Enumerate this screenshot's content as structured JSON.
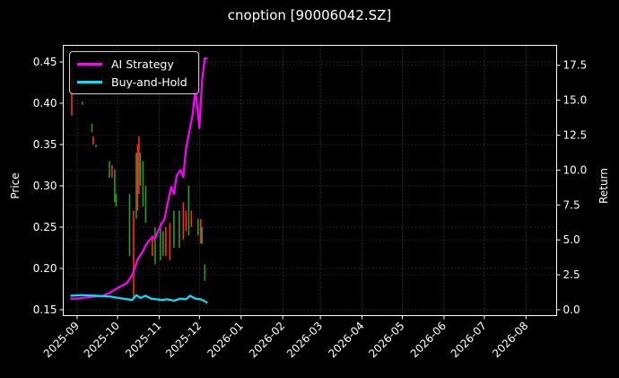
{
  "chart_data": {
    "type": "line",
    "title": "cnoption [90006042.SZ]",
    "xlabel": "",
    "ylabel": "Price",
    "ylabel_right": "Return",
    "ylim": [
      0.143,
      0.467
    ],
    "ylim_right": [
      -0.4,
      18.6
    ],
    "yticks": [
      "0.15",
      "0.20",
      "0.25",
      "0.30",
      "0.35",
      "0.40",
      "0.45"
    ],
    "yticks_right": [
      "0.0",
      "2.5",
      "5.0",
      "7.5",
      "10.0",
      "12.5",
      "15.0",
      "17.5"
    ],
    "xticks": [
      "2025-09",
      "2025-10",
      "2025-11",
      "2025-12",
      "2026-01",
      "2026-02",
      "2026-03",
      "2026-04",
      "2026-05",
      "2026-06",
      "2026-07",
      "2026-08"
    ],
    "grid": true,
    "legend_position": "upper left",
    "legend": [
      "AI Strategy",
      "Buy-and-Hold"
    ],
    "colors": {
      "ai_strategy": "#ff00ff",
      "buy_and_hold": "#00e5ff",
      "candle_up": "#1f9e1f",
      "candle_down": "#ff2a1a",
      "background": "#000000",
      "grid": "#444444"
    },
    "series": [
      {
        "name": "AI Strategy",
        "axis": "right",
        "x": [
          "2025-08-27",
          "2025-09-01",
          "2025-09-05",
          "2025-09-10",
          "2025-09-15",
          "2025-09-20",
          "2025-09-25",
          "2025-09-30",
          "2025-10-08",
          "2025-10-12",
          "2025-10-14",
          "2025-10-16",
          "2025-10-18",
          "2025-10-20",
          "2025-10-22",
          "2025-10-24",
          "2025-10-27",
          "2025-10-29",
          "2025-10-31",
          "2025-11-03",
          "2025-11-05",
          "2025-11-07",
          "2025-11-10",
          "2025-11-12",
          "2025-11-14",
          "2025-11-17",
          "2025-11-19",
          "2025-11-21",
          "2025-11-24",
          "2025-11-26",
          "2025-11-28",
          "2025-12-01",
          "2025-12-03",
          "2025-12-05",
          "2025-12-07"
        ],
        "values": [
          0.8,
          0.8,
          0.85,
          0.9,
          0.95,
          1.0,
          1.2,
          1.5,
          1.9,
          2.5,
          3.0,
          3.6,
          3.9,
          4.2,
          4.6,
          4.9,
          5.2,
          5.1,
          5.6,
          6.2,
          6.5,
          7.5,
          8.8,
          8.3,
          9.6,
          10.0,
          9.5,
          11.5,
          13.0,
          14.0,
          15.8,
          13.0,
          16.5,
          18.0,
          18.0
        ]
      },
      {
        "name": "Buy-and-Hold",
        "axis": "right",
        "x": [
          "2025-08-27",
          "2025-09-05",
          "2025-09-15",
          "2025-09-25",
          "2025-10-05",
          "2025-10-12",
          "2025-10-15",
          "2025-10-18",
          "2025-10-22",
          "2025-10-26",
          "2025-10-30",
          "2025-11-03",
          "2025-11-07",
          "2025-11-12",
          "2025-11-17",
          "2025-11-21",
          "2025-11-24",
          "2025-11-28",
          "2025-12-02",
          "2025-12-07"
        ],
        "values": [
          1.0,
          1.05,
          1.0,
          0.95,
          0.8,
          0.7,
          1.05,
          0.85,
          1.0,
          0.8,
          0.75,
          0.7,
          0.75,
          0.65,
          0.8,
          0.75,
          1.0,
          0.8,
          0.75,
          0.5
        ]
      }
    ],
    "candles": [
      {
        "x": "2025-08-28",
        "low": 0.385,
        "high": 0.445,
        "dir": "down"
      },
      {
        "x": "2025-09-05",
        "low": 0.398,
        "high": 0.402,
        "dir": "up"
      },
      {
        "x": "2025-09-12",
        "low": 0.365,
        "high": 0.375,
        "dir": "up"
      },
      {
        "x": "2025-09-13",
        "low": 0.35,
        "high": 0.36,
        "dir": "down"
      },
      {
        "x": "2025-09-15",
        "low": 0.347,
        "high": 0.35,
        "dir": "up"
      },
      {
        "x": "2025-09-25",
        "low": 0.31,
        "high": 0.33,
        "dir": "up"
      },
      {
        "x": "2025-09-27",
        "low": 0.31,
        "high": 0.325,
        "dir": "down"
      },
      {
        "x": "2025-09-29",
        "low": 0.28,
        "high": 0.32,
        "dir": "up"
      },
      {
        "x": "2025-09-30",
        "low": 0.275,
        "high": 0.29,
        "dir": "up"
      },
      {
        "x": "2025-10-10",
        "low": 0.215,
        "high": 0.29,
        "dir": "up"
      },
      {
        "x": "2025-10-13",
        "low": 0.165,
        "high": 0.27,
        "dir": "down"
      },
      {
        "x": "2025-10-15",
        "low": 0.26,
        "high": 0.34,
        "dir": "up"
      },
      {
        "x": "2025-10-16",
        "low": 0.27,
        "high": 0.35,
        "dir": "down"
      },
      {
        "x": "2025-10-17",
        "low": 0.29,
        "high": 0.36,
        "dir": "down"
      },
      {
        "x": "2025-10-18",
        "low": 0.3,
        "high": 0.34,
        "dir": "up"
      },
      {
        "x": "2025-10-20",
        "low": 0.275,
        "high": 0.33,
        "dir": "up"
      },
      {
        "x": "2025-10-22",
        "low": 0.255,
        "high": 0.3,
        "dir": "up"
      },
      {
        "x": "2025-10-27",
        "low": 0.215,
        "high": 0.24,
        "dir": "down"
      },
      {
        "x": "2025-10-29",
        "low": 0.205,
        "high": 0.25,
        "dir": "up"
      },
      {
        "x": "2025-11-02",
        "low": 0.21,
        "high": 0.255,
        "dir": "up"
      },
      {
        "x": "2025-11-04",
        "low": 0.215,
        "high": 0.245,
        "dir": "up"
      },
      {
        "x": "2025-11-06",
        "low": 0.215,
        "high": 0.25,
        "dir": "down"
      },
      {
        "x": "2025-11-09",
        "low": 0.21,
        "high": 0.255,
        "dir": "down"
      },
      {
        "x": "2025-11-12",
        "low": 0.225,
        "high": 0.27,
        "dir": "up"
      },
      {
        "x": "2025-11-16",
        "low": 0.225,
        "high": 0.27,
        "dir": "up"
      },
      {
        "x": "2025-11-19",
        "low": 0.235,
        "high": 0.28,
        "dir": "down"
      },
      {
        "x": "2025-11-21",
        "low": 0.245,
        "high": 0.27,
        "dir": "down"
      },
      {
        "x": "2025-11-23",
        "low": 0.24,
        "high": 0.3,
        "dir": "up"
      },
      {
        "x": "2025-11-25",
        "low": 0.25,
        "high": 0.27,
        "dir": "down"
      },
      {
        "x": "2025-11-30",
        "low": 0.24,
        "high": 0.26,
        "dir": "up"
      },
      {
        "x": "2025-12-02",
        "low": 0.23,
        "high": 0.26,
        "dir": "down"
      },
      {
        "x": "2025-12-03",
        "low": 0.23,
        "high": 0.25,
        "dir": "up"
      },
      {
        "x": "2025-12-05",
        "low": 0.185,
        "high": 0.205,
        "dir": "up"
      }
    ]
  }
}
